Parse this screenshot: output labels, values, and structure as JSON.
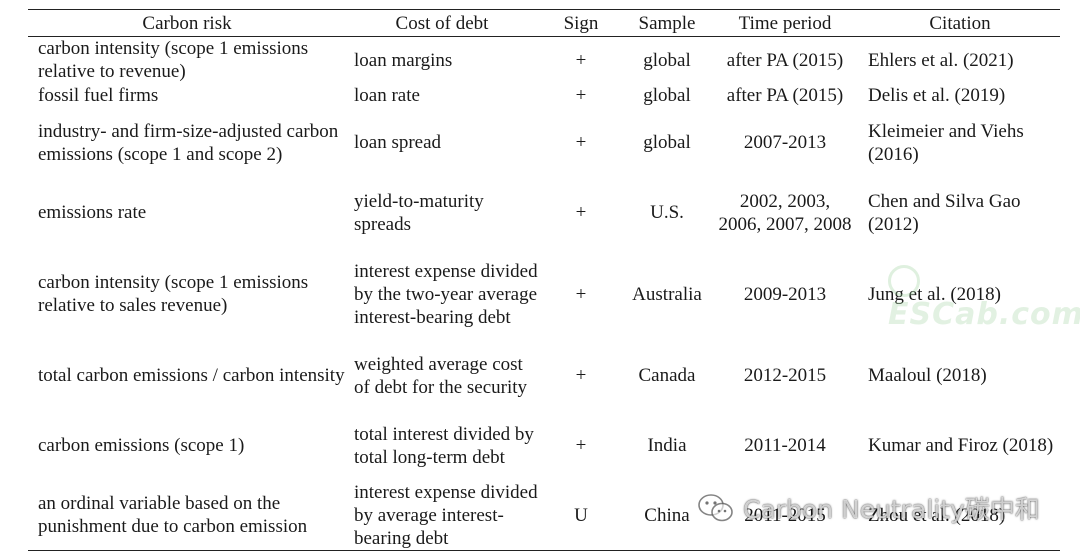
{
  "table": {
    "headers": {
      "carbon_risk": "Carbon risk",
      "cost_of_debt": "Cost of debt",
      "sign": "Sign",
      "sample": "Sample",
      "time_period": "Time period",
      "citation": "Citation"
    },
    "rows": [
      {
        "carbon_risk": "carbon intensity (scope 1 emissions relative to revenue)",
        "cost_of_debt": "loan margins",
        "sign": "+",
        "sample": "global",
        "time_period": "after PA (2015)",
        "citation": "Ehlers et al. (2021)"
      },
      {
        "carbon_risk": "fossil fuel firms",
        "cost_of_debt": "loan rate",
        "sign": "+",
        "sample": "global",
        "time_period": "after PA (2015)",
        "citation": "Delis et al. (2019)"
      },
      {
        "carbon_risk": "industry- and firm-size-adjusted carbon emissions (scope 1 and scope 2)",
        "cost_of_debt": "loan spread",
        "sign": "+",
        "sample": "global",
        "time_period": "2007-2013",
        "citation": "Kleimeier and Viehs (2016)"
      },
      {
        "carbon_risk": "emissions rate",
        "cost_of_debt": "yield-to-maturity spreads",
        "sign": "+",
        "sample": "U.S.",
        "time_period": "2002, 2003, 2006, 2007, 2008",
        "citation": "Chen and Silva Gao (2012)"
      },
      {
        "carbon_risk": "carbon intensity (scope 1 emissions relative to sales revenue)",
        "cost_of_debt": "interest expense divided by the two-year average interest-bearing debt",
        "sign": "+",
        "sample": "Australia",
        "time_period": "2009-2013",
        "citation": "Jung et al. (2018)"
      },
      {
        "carbon_risk": "total carbon emissions / carbon intensity",
        "cost_of_debt": "weighted average cost of debt for the security",
        "sign": "+",
        "sample": "Canada",
        "time_period": "2012-2015",
        "citation": "Maaloul (2018)"
      },
      {
        "carbon_risk": "carbon emissions (scope 1)",
        "cost_of_debt": "total interest divided by total long-term debt",
        "sign": "+",
        "sample": "India",
        "time_period": "2011-2014",
        "citation": "Kumar and Firoz (2018)"
      },
      {
        "carbon_risk": "an ordinal variable based on the punishment due to carbon emission",
        "cost_of_debt": "interest expense divided by average interest-bearing debt",
        "sign": "U",
        "sample": "China",
        "time_period": "2011-2015",
        "citation": "Zhou et al. (2018)"
      }
    ]
  },
  "watermarks": {
    "site_text": "ESCab.com",
    "wechat_text": "Carbon Neutrality碳中和",
    "wechat_icon": "wechat-icon"
  }
}
